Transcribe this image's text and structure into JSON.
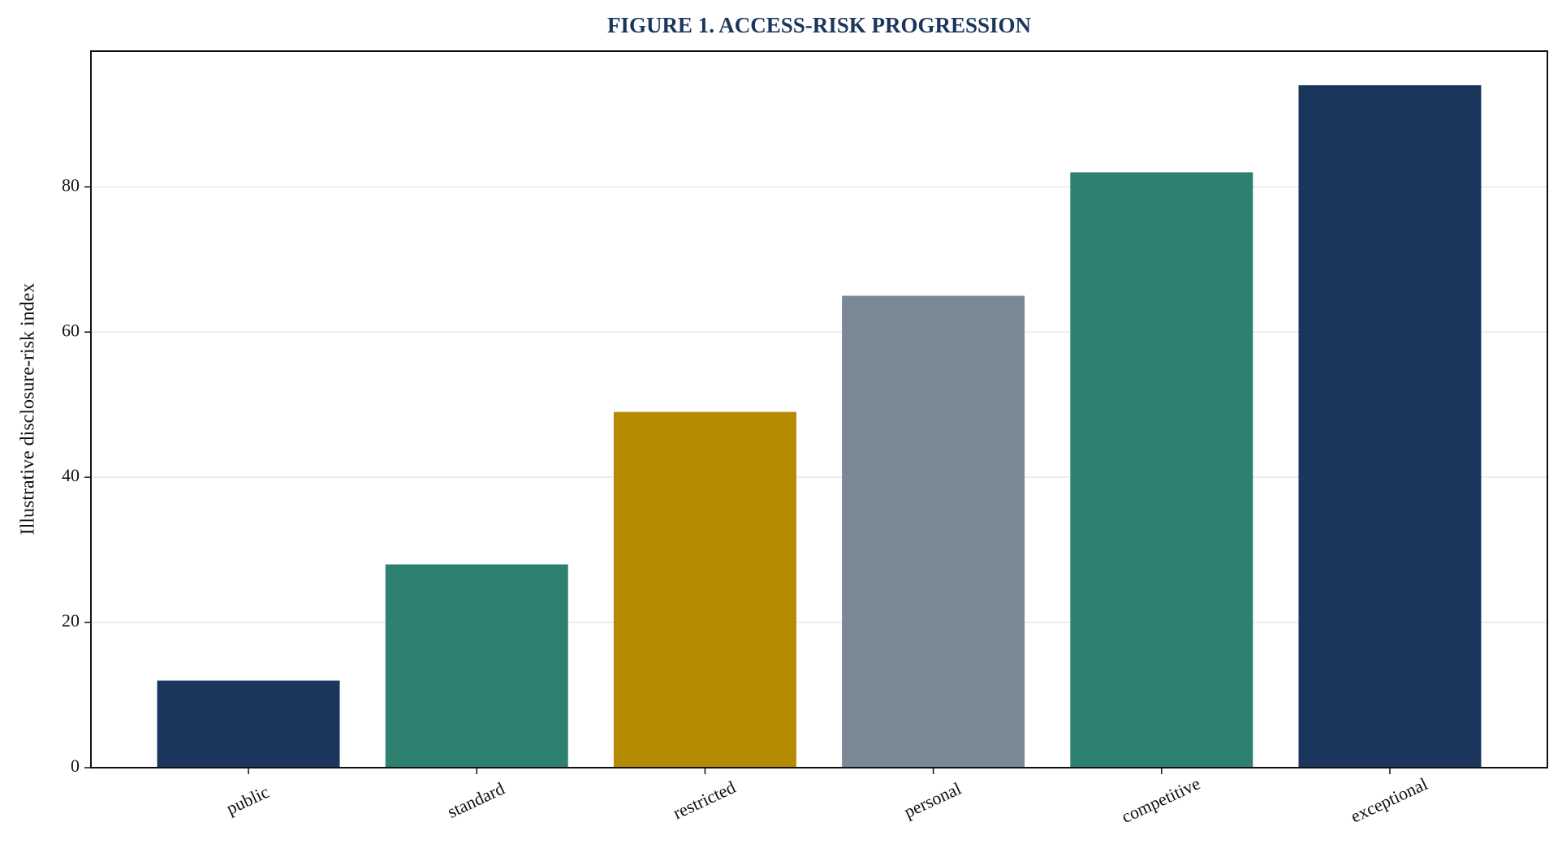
{
  "chart_data": {
    "type": "bar",
    "title": "FIGURE 1. ACCESS-RISK PROGRESSION",
    "y_label": "Illustrative disclosure-risk index",
    "categories": [
      "public",
      "standard",
      "restricted",
      "personal",
      "competitive",
      "exceptional"
    ],
    "values": [
      12,
      28,
      49,
      65,
      82,
      94
    ],
    "colors": [
      "#1a365d",
      "#2e8070",
      "#b38a00",
      "#7a8795",
      "#2e8070",
      "#1a365d"
    ],
    "ylim": [
      0,
      98.7
    ],
    "yticks": [
      0,
      20,
      40,
      60,
      80
    ],
    "grid": true
  }
}
